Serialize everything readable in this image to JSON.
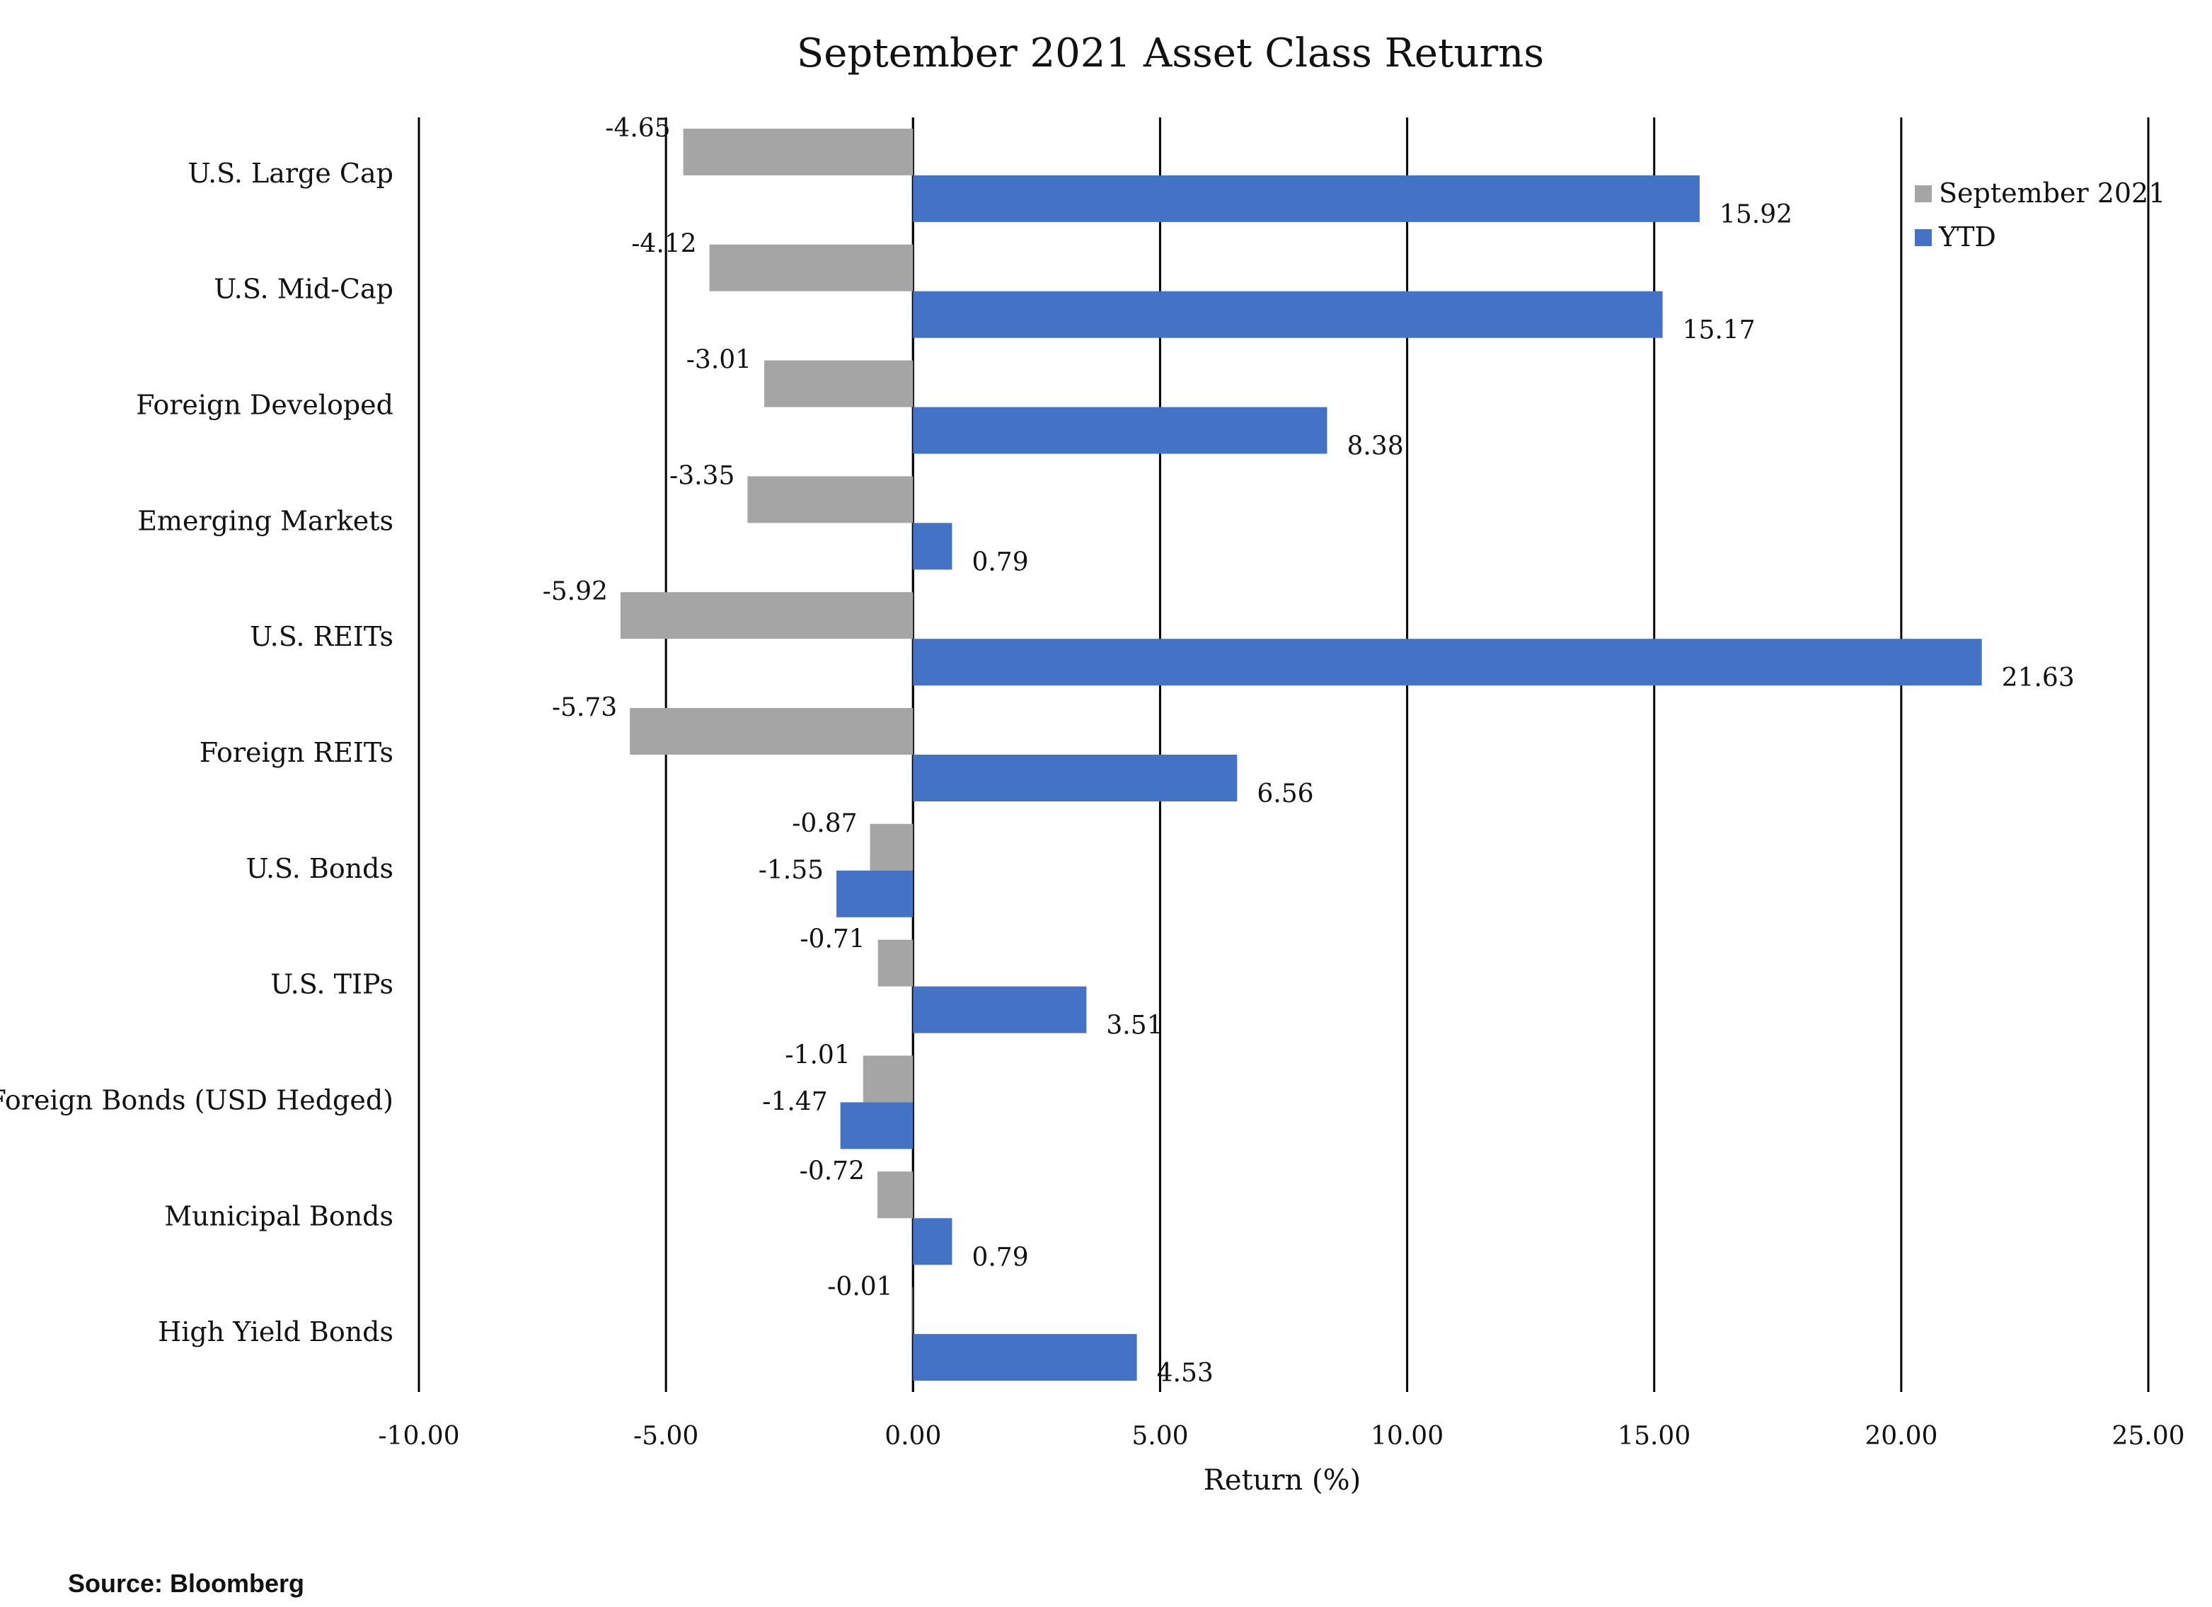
{
  "chart_data": {
    "type": "bar",
    "orientation": "horizontal",
    "title": "September 2021 Asset Class Returns",
    "xlabel": "Return (%)",
    "ylabel": "",
    "xlim": [
      -10,
      25
    ],
    "xticks": [
      "-10.00",
      "-5.00",
      "0.00",
      "5.00",
      "10.00",
      "15.00",
      "20.00",
      "25.00"
    ],
    "grid": "vertical",
    "legend_position": "top-right",
    "categories": [
      "U.S. Large Cap",
      "U.S.  Mid-Cap",
      "Foreign Developed",
      "Emerging Markets",
      "U.S. REITs",
      "Foreign REITs",
      "U.S. Bonds",
      "U.S. TIPs",
      "Foreign Bonds  (USD Hedged)",
      "Municipal Bonds",
      "High Yield Bonds"
    ],
    "series": [
      {
        "name": "September 2021",
        "color": "#a5a5a5",
        "values": [
          -4.65,
          -4.12,
          -3.01,
          -3.35,
          -5.92,
          -5.73,
          -0.87,
          -0.71,
          -1.01,
          -0.72,
          -0.01
        ],
        "labels": [
          "-4.65",
          "-4.12",
          "-3.01",
          "-3.35",
          "-5.92",
          "-5.73",
          "-0.87",
          "-0.71",
          "-1.01",
          "-0.72",
          "-0.01"
        ]
      },
      {
        "name": "YTD",
        "color": "#4472c4",
        "values": [
          15.92,
          15.17,
          8.38,
          0.79,
          21.63,
          6.56,
          -1.55,
          3.51,
          -1.47,
          0.79,
          4.53
        ],
        "labels": [
          "15.92",
          "15.17",
          "8.38",
          "0.79",
          "21.63",
          "6.56",
          "-1.55",
          "3.51",
          "-1.47",
          "0.79",
          "4.53"
        ]
      }
    ]
  },
  "source_note": "Source: Bloomberg"
}
